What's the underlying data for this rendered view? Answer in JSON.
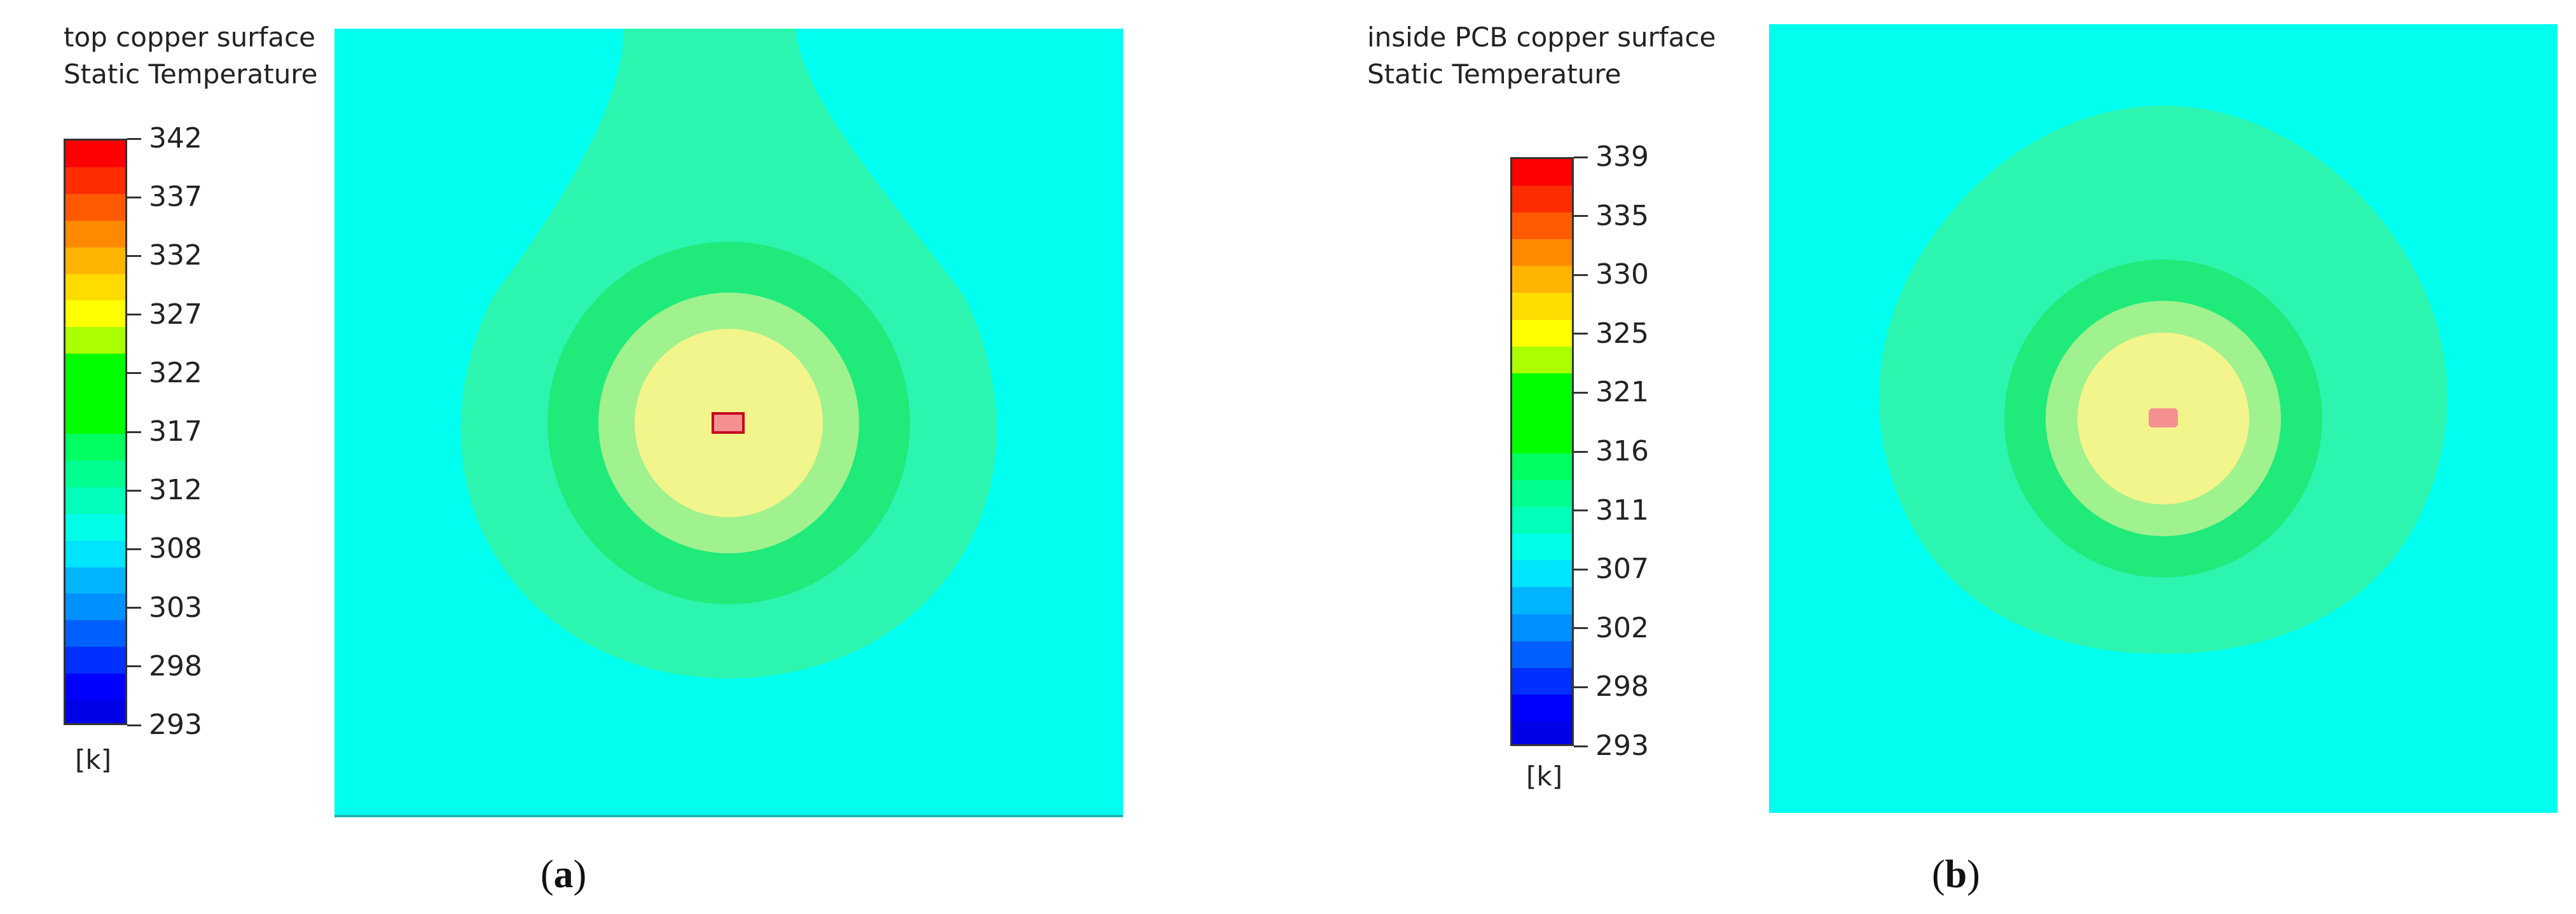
{
  "figure": {
    "panels": [
      {
        "id": "a",
        "caption_letter": "a",
        "title_line1": "top copper surface",
        "title_line2": "Static Temperature",
        "unit": "[k]",
        "colorbar": {
          "min": 293,
          "max": 342,
          "tick_labels": [
            "342",
            "337",
            "332",
            "327",
            "322",
            "317",
            "312",
            "308",
            "303",
            "298",
            "293"
          ],
          "colors": [
            "#ff0000",
            "#ff2d00",
            "#ff5a00",
            "#ff8a00",
            "#ffb400",
            "#ffdc00",
            "#ffff00",
            "#aaff00",
            "#00ff00",
            "#00ff00",
            "#00ff00",
            "#00ff60",
            "#00ff90",
            "#00ffb8",
            "#00ffe8",
            "#00e4ff",
            "#00b4ff",
            "#0090ff",
            "#0060ff",
            "#0030ff",
            "#0000ff",
            "#0000e6"
          ]
        }
      },
      {
        "id": "b",
        "caption_letter": "b",
        "title_line1": "inside PCB copper surface",
        "title_line2": "Static Temperature",
        "unit": "[k]",
        "colorbar": {
          "min": 293,
          "max": 339,
          "tick_labels": [
            "339",
            "335",
            "330",
            "325",
            "321",
            "316",
            "311",
            "307",
            "302",
            "298",
            "293"
          ],
          "colors": [
            "#ff0000",
            "#ff2d00",
            "#ff5a00",
            "#ff8a00",
            "#ffb400",
            "#ffdc00",
            "#ffff00",
            "#aaff00",
            "#00ff00",
            "#00ff00",
            "#00ff00",
            "#00ff60",
            "#00ff90",
            "#00ffb8",
            "#00ffe8",
            "#00e4ff",
            "#00b4ff",
            "#0090ff",
            "#0060ff",
            "#0030ff",
            "#0000ff",
            "#0000e6"
          ]
        }
      }
    ]
  },
  "chart_data": [
    {
      "type": "heatmap",
      "title": "top copper surface Static Temperature",
      "unit": "[k]",
      "range": [
        293,
        342
      ],
      "colorbar_ticks": [
        342,
        337,
        332,
        327,
        322,
        317,
        312,
        308,
        303,
        298,
        293
      ],
      "field_colors": {
        "background": "#00ffee",
        "plume": "#2cf5b0",
        "ring_green": "#1fea7a",
        "ring_light": "#9ff28e",
        "core": "#f2f58c",
        "hotspot": "#f59090",
        "hotspot_border": "#c4001e"
      }
    },
    {
      "type": "heatmap",
      "title": "inside PCB copper surface Static Temperature",
      "unit": "[k]",
      "range": [
        293,
        339
      ],
      "colorbar_ticks": [
        339,
        335,
        330,
        325,
        321,
        316,
        311,
        307,
        302,
        298,
        293
      ],
      "field_colors": {
        "background": "#00ffee",
        "plume": "#2cf5b0",
        "ring_green": "#1fea7a",
        "ring_light": "#9ff28e",
        "core": "#f2f58c",
        "hotspot": "#f59090"
      }
    }
  ]
}
